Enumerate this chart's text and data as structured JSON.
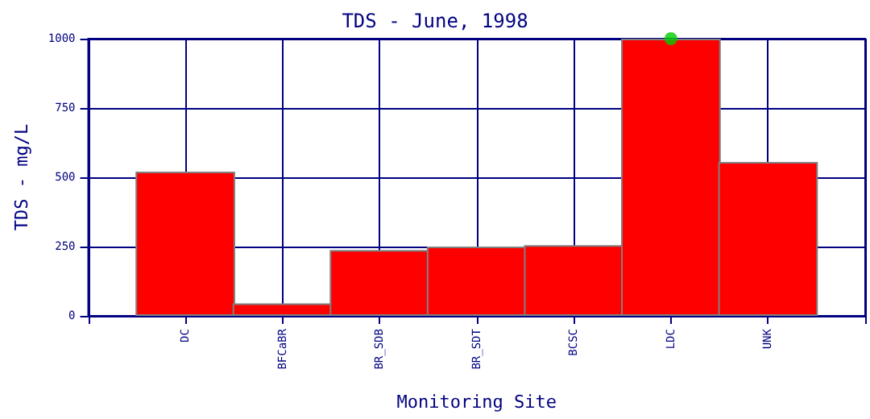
{
  "chart_data": {
    "type": "bar",
    "title": "TDS - June, 1998",
    "xlabel": "Monitoring Site",
    "ylabel": "TDS - mg/L",
    "categories": [
      "DC",
      "BFCaBR",
      "BR_SDB",
      "BR_SDT",
      "BCSC",
      "LDC",
      "UNK"
    ],
    "series": [
      {
        "color": "#ff0000",
        "values": [
          520,
          45,
          238,
          250,
          255,
          1000,
          555
        ]
      },
      {
        "type": "scatter",
        "color": "#00cc00",
        "x": [
          "LDC"
        ],
        "values": [
          1000
        ],
        "marker": "circle"
      }
    ],
    "ylim": [
      0,
      1000
    ],
    "yticks": [
      0,
      250,
      500,
      750,
      1000
    ],
    "grid": true
  }
}
